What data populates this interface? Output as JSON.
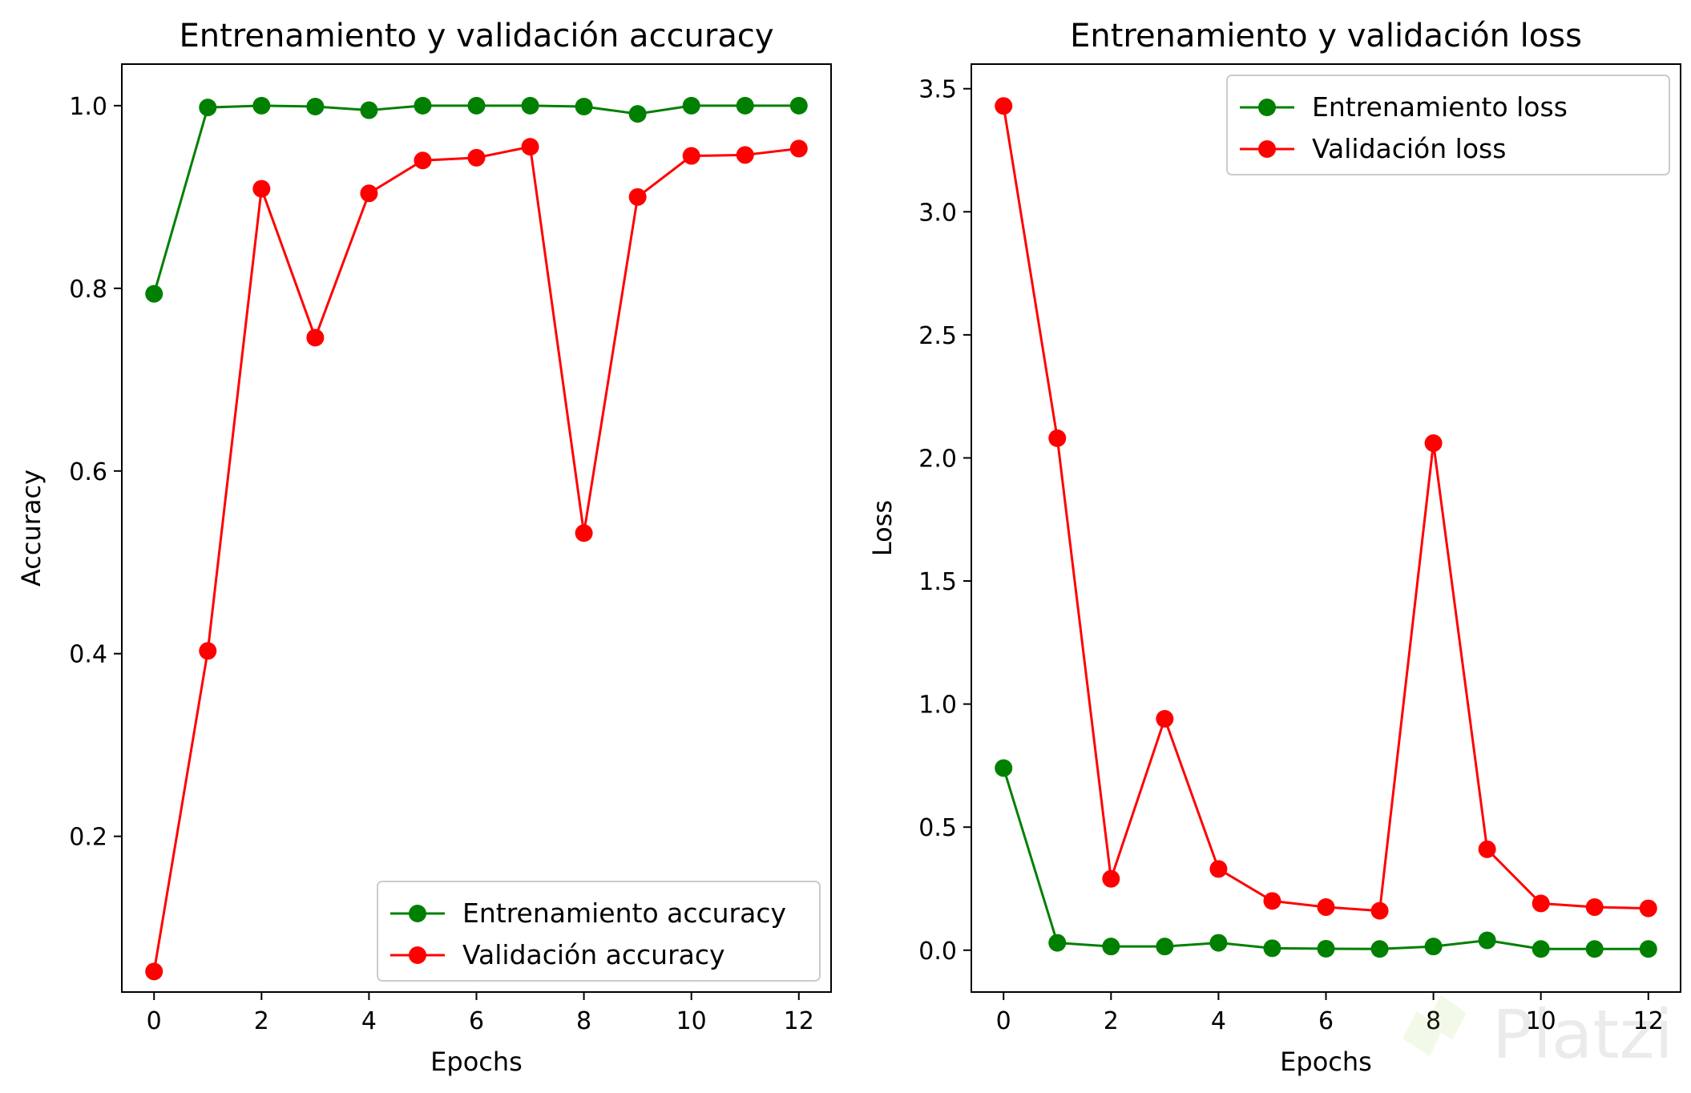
{
  "watermark": "Platzi",
  "colors": {
    "train": "#008000",
    "val": "#ff0000",
    "axis": "#000000",
    "legend_border": "#cccccc"
  },
  "chart_data": [
    {
      "type": "line",
      "title": "Entrenamiento y validación accuracy",
      "xlabel": "Epochs",
      "ylabel": "Accuracy",
      "x": [
        0,
        1,
        2,
        3,
        4,
        5,
        6,
        7,
        8,
        9,
        10,
        11,
        12
      ],
      "xlim": [
        -0.6,
        12.6
      ],
      "ylim": [
        0.0295,
        1.0455
      ],
      "xticks": [
        0,
        2,
        4,
        6,
        8,
        10,
        12
      ],
      "xtick_labels": [
        "0",
        "2",
        "4",
        "6",
        "8",
        "10",
        "12"
      ],
      "yticks": [
        0.2,
        0.4,
        0.6,
        0.8,
        1.0
      ],
      "ytick_labels": [
        "0.2",
        "0.4",
        "0.6",
        "0.8",
        "1.0"
      ],
      "legend_loc": "lower-right",
      "series": [
        {
          "name": "Entrenamiento accuracy",
          "color": "#008000",
          "values": [
            0.794,
            0.998,
            1.0,
            0.999,
            0.995,
            1.0,
            1.0,
            1.0,
            0.999,
            0.991,
            1.0,
            1.0,
            1.0
          ]
        },
        {
          "name": "Validación accuracy",
          "color": "#ff0000",
          "values": [
            0.052,
            0.403,
            0.909,
            0.746,
            0.904,
            0.94,
            0.943,
            0.955,
            0.532,
            0.9,
            0.945,
            0.946,
            0.953
          ]
        }
      ]
    },
    {
      "type": "line",
      "title": "Entrenamiento y validación loss",
      "xlabel": "Epochs",
      "ylabel": "Loss",
      "x": [
        0,
        1,
        2,
        3,
        4,
        5,
        6,
        7,
        8,
        9,
        10,
        11,
        12
      ],
      "xlim": [
        -0.6,
        12.6
      ],
      "ylim": [
        -0.17,
        3.6
      ],
      "xticks": [
        0,
        2,
        4,
        6,
        8,
        10,
        12
      ],
      "xtick_labels": [
        "0",
        "2",
        "4",
        "6",
        "8",
        "10",
        "12"
      ],
      "yticks": [
        0.0,
        0.5,
        1.0,
        1.5,
        2.0,
        2.5,
        3.0,
        3.5
      ],
      "ytick_labels": [
        "0.0",
        "0.5",
        "1.0",
        "1.5",
        "2.0",
        "2.5",
        "3.0",
        "3.5"
      ],
      "legend_loc": "upper-right",
      "series": [
        {
          "name": "Entrenamiento loss",
          "color": "#008000",
          "values": [
            0.74,
            0.03,
            0.015,
            0.015,
            0.03,
            0.008,
            0.006,
            0.005,
            0.015,
            0.04,
            0.005,
            0.005,
            0.005
          ]
        },
        {
          "name": "Validación loss",
          "color": "#ff0000",
          "values": [
            3.43,
            2.08,
            0.29,
            0.94,
            0.33,
            0.2,
            0.175,
            0.16,
            2.06,
            0.41,
            0.19,
            0.175,
            0.17
          ]
        }
      ]
    }
  ]
}
